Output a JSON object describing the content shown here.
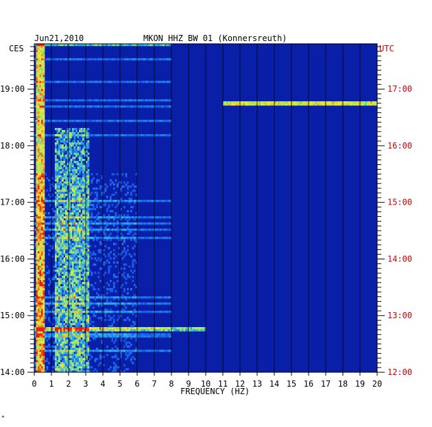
{
  "header": {
    "date": "Jun21,2010",
    "station": "MKON HHZ BW 01 (Konnersreuth)"
  },
  "colors": {
    "background": "#0a1fa8",
    "left_axis_text": "#000000",
    "right_axis_text": "#cc0000",
    "event_line": "#ffe040"
  },
  "chart_data": {
    "type": "heatmap",
    "title": "",
    "xlabel": "FREQUENCY (HZ)",
    "xlim": [
      0,
      20
    ],
    "x_ticks": [
      "0",
      "1",
      "2",
      "3",
      "4",
      "5",
      "6",
      "7",
      "8",
      "9",
      "10",
      "11",
      "12",
      "13",
      "14",
      "15",
      "16",
      "17",
      "18",
      "19",
      "20"
    ],
    "left_axis": {
      "label": "CES",
      "ticks": [
        "19:00",
        "18:00",
        "17:00",
        "16:00",
        "15:00",
        "14:00"
      ],
      "hours": [
        19,
        18,
        17,
        16,
        15,
        14
      ]
    },
    "right_axis": {
      "label": "UTC",
      "ticks": [
        "17:00",
        "16:00",
        "15:00",
        "14:00",
        "13:00",
        "12:00"
      ],
      "hours": [
        17,
        16,
        15,
        14,
        13,
        12
      ]
    },
    "time_range_ces": [
      14.0,
      19.8
    ],
    "features": [
      {
        "kind": "low_frequency_band",
        "freq_hz": [
          0.1,
          0.6
        ],
        "intensity": "high"
      },
      {
        "kind": "microseism_band",
        "freq_hz": [
          1.2,
          3.2
        ],
        "time_ces": [
          14.0,
          18.3
        ],
        "intensity": "medium"
      },
      {
        "kind": "broadband_line",
        "time_ces": 18.75,
        "freq_hz": [
          11,
          20
        ],
        "intensity": "high"
      },
      {
        "kind": "broadband_line",
        "time_ces": 14.76,
        "freq_hz": [
          0,
          10
        ],
        "intensity": "medium"
      },
      {
        "kind": "broadband_line",
        "time_ces": 19.78,
        "freq_hz": [
          0,
          8
        ],
        "intensity": "medium"
      }
    ]
  }
}
